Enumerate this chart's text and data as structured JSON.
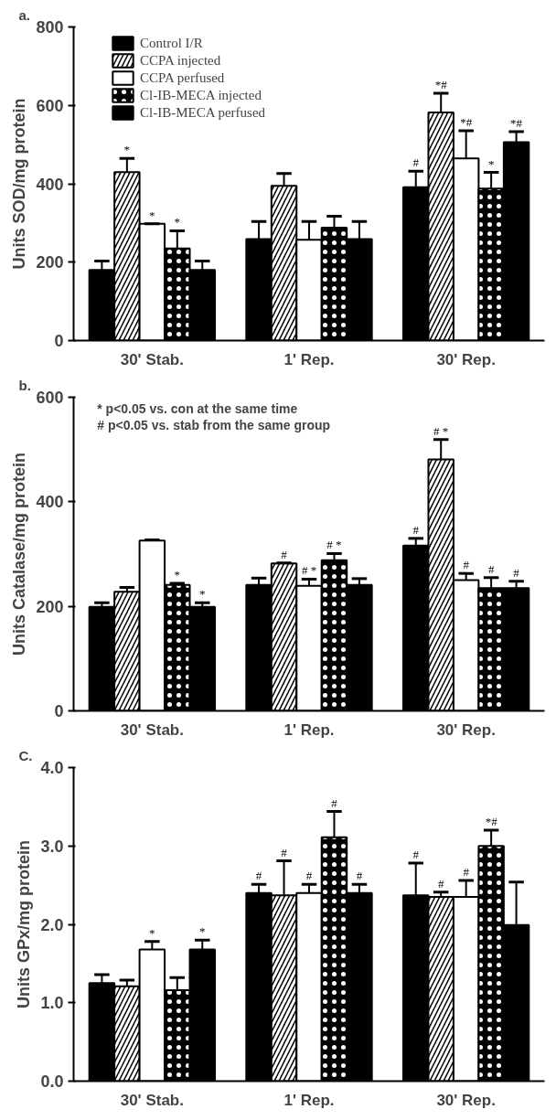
{
  "chart_data": [
    {
      "type": "bar",
      "title": "a.",
      "ylabel": "Units SOD/mg protein",
      "categories": [
        "30' Stab.",
        "1' Rep.",
        "30' Rep."
      ],
      "ylim": [
        0,
        800
      ],
      "yticks": [
        0,
        200,
        400,
        600,
        800
      ],
      "legend": "top left",
      "grid": false,
      "series": [
        {
          "name": "Control I/R",
          "color": "#000000",
          "values": [
            180,
            259,
            391
          ],
          "errors": [
            23,
            45,
            41
          ],
          "value_labels": [
            null,
            null,
            "#"
          ]
        },
        {
          "name": "CCPA injected",
          "color": "#000000",
          "values": [
            430,
            395,
            582
          ],
          "errors": [
            35,
            31,
            49
          ],
          "value_labels": [
            "*",
            null,
            "*#"
          ]
        },
        {
          "name": "CCPA perfused",
          "color": "#ffffff",
          "values": [
            298,
            257,
            465
          ],
          "errors": [
            0,
            47,
            70
          ],
          "value_labels": [
            "*",
            null,
            "*#"
          ]
        },
        {
          "name": "Cl-IB-MECA injected",
          "color": "#000000",
          "values": [
            235,
            288,
            388
          ],
          "errors": [
            45,
            29,
            41
          ],
          "value_labels": [
            "*",
            null,
            "*"
          ]
        },
        {
          "name": "Cl-IB-MECA perfused",
          "color": "#000000",
          "values": [
            180,
            259,
            506
          ],
          "errors": [
            23,
            45,
            27
          ],
          "value_labels": [
            null,
            null,
            "*#"
          ]
        }
      ]
    },
    {
      "type": "bar",
      "title": "b.",
      "ylabel": "Units Catalase/mg protein",
      "categories": [
        "30' Stab.",
        "1' Rep.",
        "30' Rep."
      ],
      "ylim": [
        0,
        600
      ],
      "yticks": [
        0,
        200,
        400,
        600
      ],
      "grid": false,
      "annotations": [
        "* p<0.05 vs.    con at the same time",
        "# p<0.05 vs.    stab from the same group"
      ],
      "series": [
        {
          "color": "#000000",
          "values": [
            199,
            241,
            316
          ],
          "errors": [
            8,
            13,
            14
          ],
          "value_labels": [
            null,
            null,
            "#"
          ]
        },
        {
          "color": "#000000",
          "values": [
            228,
            282,
            481
          ],
          "errors": [
            8,
            1,
            38
          ],
          "value_labels": [
            null,
            "#",
            "# *"
          ]
        },
        {
          "color": "#ffffff",
          "values": [
            326,
            239,
            250
          ],
          "errors": [
            1,
            13,
            13
          ],
          "value_labels": [
            null,
            "# *",
            "#"
          ]
        },
        {
          "color": "#000000",
          "values": [
            241,
            288,
            235
          ],
          "errors": [
            3,
            13,
            20
          ],
          "value_labels": [
            "*",
            "# *",
            "#"
          ]
        },
        {
          "color": "#000000",
          "values": [
            199,
            241,
            235
          ],
          "errors": [
            8,
            12,
            13
          ],
          "value_labels": [
            "*",
            null,
            "#"
          ]
        }
      ]
    },
    {
      "type": "bar",
      "title": "C.",
      "ylabel": "Units GPx/mg protein",
      "categories": [
        "30' Stab.",
        "1' Rep.",
        "30' Rep."
      ],
      "ylim": [
        0,
        4
      ],
      "yticks": [
        {
          "value": 0,
          "label": "0.0"
        },
        {
          "value": 1,
          "label": "1.0"
        },
        {
          "value": 2,
          "label": "2.0"
        },
        {
          "value": 3,
          "label": "3.0"
        },
        {
          "value": 4,
          "label": "4.0"
        }
      ],
      "grid": false,
      "series": [
        {
          "color": "#000000",
          "values": [
            1.25,
            2.4,
            2.37
          ],
          "errors": [
            0.11,
            0.11,
            0.41
          ],
          "value_labels": [
            null,
            "#",
            "#"
          ]
        },
        {
          "color": "#000000",
          "values": [
            1.21,
            2.37,
            2.35
          ],
          "errors": [
            0.08,
            0.44,
            0.06
          ],
          "value_labels": [
            null,
            "#",
            "#"
          ]
        },
        {
          "color": "#ffffff",
          "values": [
            1.68,
            2.4,
            2.35
          ],
          "errors": [
            0.1,
            0.11,
            0.21
          ],
          "value_labels": [
            "*",
            "#",
            "#"
          ]
        },
        {
          "color": "#000000",
          "values": [
            1.16,
            3.11,
            3.0
          ],
          "errors": [
            0.16,
            0.33,
            0.2
          ],
          "value_labels": [
            null,
            "#",
            "*#"
          ]
        },
        {
          "color": "#000000",
          "values": [
            1.68,
            2.4,
            1.99
          ],
          "errors": [
            0.12,
            0.11,
            0.55
          ],
          "value_labels": [
            "*",
            "#",
            null
          ]
        }
      ]
    }
  ]
}
